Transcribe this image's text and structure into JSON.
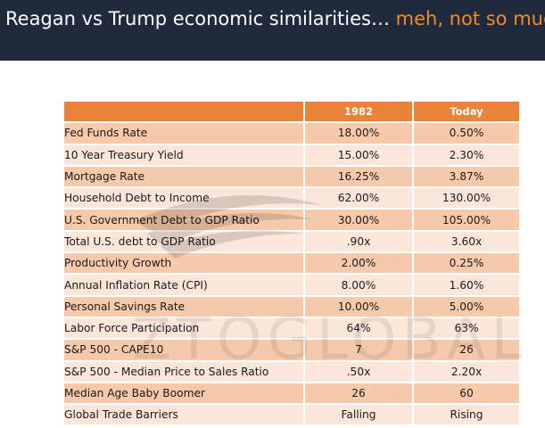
{
  "slide": {
    "title_main": "Reagan vs Trump economic similarities… ",
    "title_accent": "meh, not so much.",
    "accent_color": "#f28a2e",
    "header_bg": "#1f2a3c",
    "watermark_text": "ZTOGLOBAL"
  },
  "table": {
    "columns": [
      "",
      "1982",
      "Today"
    ],
    "rows": [
      {
        "label": "Fed Funds Rate",
        "y1982": "18.00%",
        "today": "0.50%"
      },
      {
        "label": "10 Year Treasury Yield",
        "y1982": "15.00%",
        "today": "2.30%"
      },
      {
        "label": "Mortgage Rate",
        "y1982": "16.25%",
        "today": "3.87%"
      },
      {
        "label": "Household Debt to Income",
        "y1982": "62.00%",
        "today": "130.00%"
      },
      {
        "label": "U.S. Government Debt to GDP Ratio",
        "y1982": "30.00%",
        "today": "105.00%"
      },
      {
        "label": "Total U.S. debt to GDP Ratio",
        "y1982": ".90x",
        "today": "3.60x"
      },
      {
        "label": "Productivity Growth",
        "y1982": "2.00%",
        "today": "0.25%"
      },
      {
        "label": "Annual Inflation Rate (CPI)",
        "y1982": "8.00%",
        "today": "1.60%"
      },
      {
        "label": "Personal Savings Rate",
        "y1982": "10.00%",
        "today": "5.00%"
      },
      {
        "label": "Labor Force Participation",
        "y1982": "64%",
        "today": "63%"
      },
      {
        "label": "S&P 500 - CAPE10",
        "y1982": "7",
        "today": "26"
      },
      {
        "label": "S&P 500 - Median Price to Sales Ratio",
        "y1982": ".50x",
        "today": "2.20x"
      },
      {
        "label": "Median Age Baby Boomer",
        "y1982": "26",
        "today": "60"
      },
      {
        "label": "Global Trade Barriers",
        "y1982": "Falling",
        "today": "Rising"
      }
    ]
  }
}
